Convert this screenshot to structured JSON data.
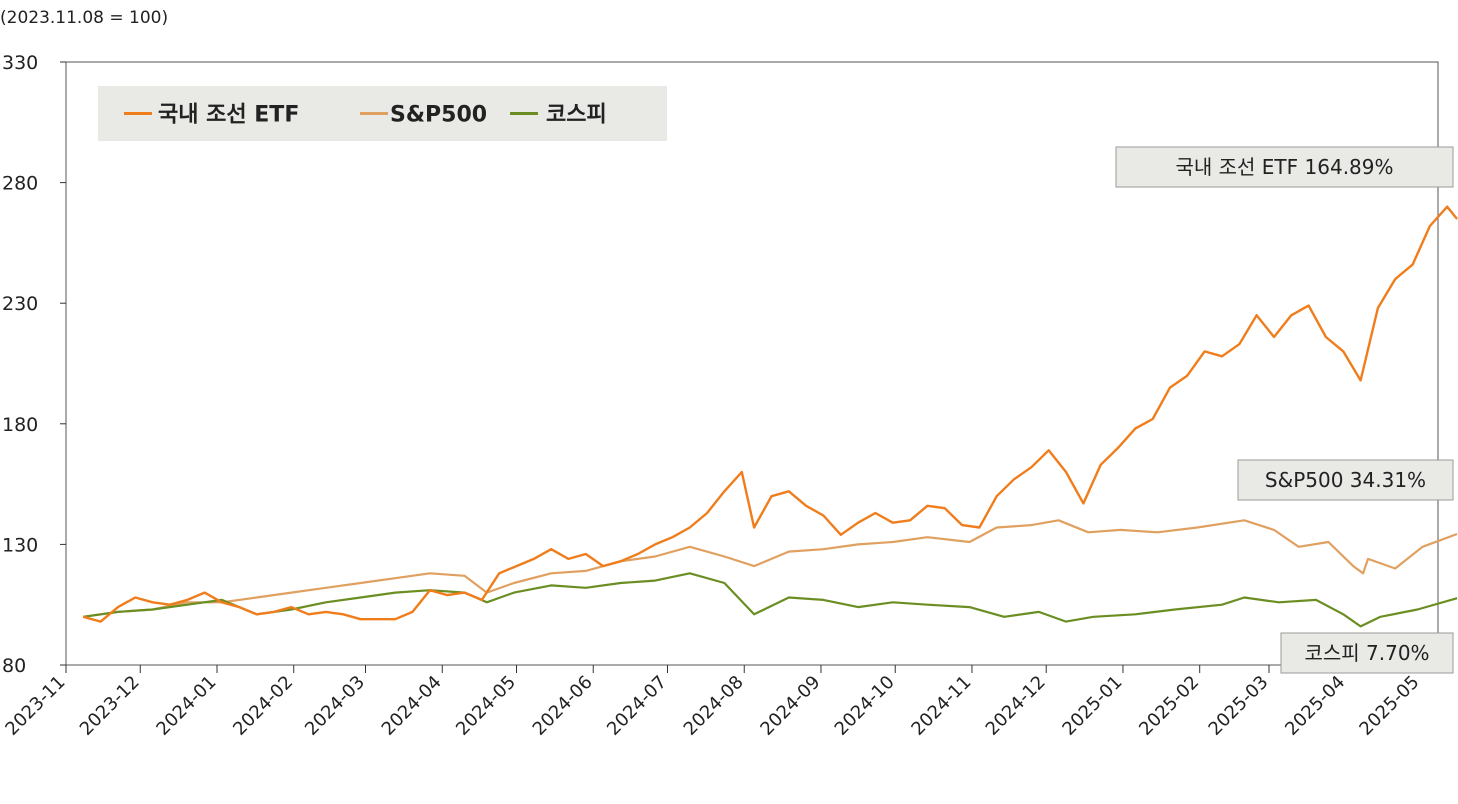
{
  "chart_data": {
    "type": "line",
    "note": "(2023.11.08 = 100)",
    "ylim": [
      80,
      330
    ],
    "yticks": [
      80,
      130,
      180,
      230,
      280,
      330
    ],
    "ytick_labels": [
      "80",
      "130",
      "180",
      "230",
      "280",
      "330"
    ],
    "xticks": [
      "2023-11",
      "2023-12",
      "2024-01",
      "2024-02",
      "2024-03",
      "2024-04",
      "2024-05",
      "2024-06",
      "2024-07",
      "2024-08",
      "2024-09",
      "2024-10",
      "2024-11",
      "2024-12",
      "2025-01",
      "2025-02",
      "2025-03",
      "2025-04",
      "2025-05"
    ],
    "legend": {
      "position": "top-left"
    },
    "series": [
      {
        "name": "국내 조선 ETF",
        "color": "#f07d1c",
        "end_label": "국내 조선 ETF 164.89%",
        "points": [
          [
            "2023-11-08",
            100
          ],
          [
            "2023-11-15",
            98
          ],
          [
            "2023-11-22",
            104
          ],
          [
            "2023-11-29",
            108
          ],
          [
            "2023-12-06",
            106
          ],
          [
            "2023-12-13",
            105
          ],
          [
            "2023-12-20",
            107
          ],
          [
            "2023-12-27",
            110
          ],
          [
            "2024-01-03",
            106
          ],
          [
            "2024-01-10",
            104
          ],
          [
            "2024-01-17",
            101
          ],
          [
            "2024-01-24",
            102
          ],
          [
            "2024-01-31",
            104
          ],
          [
            "2024-02-07",
            101
          ],
          [
            "2024-02-14",
            102
          ],
          [
            "2024-02-21",
            101
          ],
          [
            "2024-02-28",
            99
          ],
          [
            "2024-03-06",
            99
          ],
          [
            "2024-03-13",
            99
          ],
          [
            "2024-03-20",
            102
          ],
          [
            "2024-03-27",
            111
          ],
          [
            "2024-04-03",
            109
          ],
          [
            "2024-04-10",
            110
          ],
          [
            "2024-04-17",
            107
          ],
          [
            "2024-04-24",
            118
          ],
          [
            "2024-05-01",
            121
          ],
          [
            "2024-05-08",
            124
          ],
          [
            "2024-05-15",
            128
          ],
          [
            "2024-05-22",
            124
          ],
          [
            "2024-05-29",
            126
          ],
          [
            "2024-06-05",
            121
          ],
          [
            "2024-06-12",
            123
          ],
          [
            "2024-06-19",
            126
          ],
          [
            "2024-06-26",
            130
          ],
          [
            "2024-07-03",
            133
          ],
          [
            "2024-07-10",
            137
          ],
          [
            "2024-07-17",
            143
          ],
          [
            "2024-07-24",
            152
          ],
          [
            "2024-07-31",
            160
          ],
          [
            "2024-08-05",
            137
          ],
          [
            "2024-08-12",
            150
          ],
          [
            "2024-08-19",
            152
          ],
          [
            "2024-08-26",
            146
          ],
          [
            "2024-09-02",
            142
          ],
          [
            "2024-09-09",
            134
          ],
          [
            "2024-09-16",
            139
          ],
          [
            "2024-09-23",
            143
          ],
          [
            "2024-09-30",
            139
          ],
          [
            "2024-10-07",
            140
          ],
          [
            "2024-10-14",
            146
          ],
          [
            "2024-10-21",
            145
          ],
          [
            "2024-10-28",
            138
          ],
          [
            "2024-11-04",
            137
          ],
          [
            "2024-11-11",
            150
          ],
          [
            "2024-11-18",
            157
          ],
          [
            "2024-11-25",
            162
          ],
          [
            "2024-12-02",
            169
          ],
          [
            "2024-12-09",
            160
          ],
          [
            "2024-12-16",
            147
          ],
          [
            "2024-12-23",
            163
          ],
          [
            "2024-12-30",
            170
          ],
          [
            "2025-01-06",
            178
          ],
          [
            "2025-01-13",
            182
          ],
          [
            "2025-01-20",
            195
          ],
          [
            "2025-01-27",
            200
          ],
          [
            "2025-02-03",
            210
          ],
          [
            "2025-02-10",
            208
          ],
          [
            "2025-02-17",
            213
          ],
          [
            "2025-02-24",
            225
          ],
          [
            "2025-03-03",
            216
          ],
          [
            "2025-03-10",
            225
          ],
          [
            "2025-03-17",
            229
          ],
          [
            "2025-03-24",
            216
          ],
          [
            "2025-03-31",
            210
          ],
          [
            "2025-04-07",
            198
          ],
          [
            "2025-04-14",
            228
          ],
          [
            "2025-04-21",
            240
          ],
          [
            "2025-04-28",
            246
          ],
          [
            "2025-05-05",
            262
          ],
          [
            "2025-05-12",
            270
          ],
          [
            "2025-05-16",
            264.89
          ]
        ]
      },
      {
        "name": "S&P500",
        "color": "#e0a060",
        "end_label": "S&P500 34.31%",
        "points": [
          [
            "2023-11-08",
            100
          ],
          [
            "2023-11-22",
            102
          ],
          [
            "2023-12-06",
            103
          ],
          [
            "2023-12-20",
            106
          ],
          [
            "2024-01-03",
            106
          ],
          [
            "2024-01-17",
            108
          ],
          [
            "2024-01-31",
            110
          ],
          [
            "2024-02-14",
            112
          ],
          [
            "2024-02-28",
            114
          ],
          [
            "2024-03-13",
            116
          ],
          [
            "2024-03-27",
            118
          ],
          [
            "2024-04-10",
            117
          ],
          [
            "2024-04-19",
            110
          ],
          [
            "2024-04-30",
            114
          ],
          [
            "2024-05-15",
            118
          ],
          [
            "2024-05-29",
            119
          ],
          [
            "2024-06-12",
            123
          ],
          [
            "2024-06-26",
            125
          ],
          [
            "2024-07-10",
            129
          ],
          [
            "2024-07-24",
            125
          ],
          [
            "2024-08-05",
            121
          ],
          [
            "2024-08-19",
            127
          ],
          [
            "2024-09-02",
            128
          ],
          [
            "2024-09-16",
            130
          ],
          [
            "2024-09-30",
            131
          ],
          [
            "2024-10-14",
            133
          ],
          [
            "2024-10-31",
            131
          ],
          [
            "2024-11-11",
            137
          ],
          [
            "2024-11-25",
            138
          ],
          [
            "2024-12-06",
            140
          ],
          [
            "2024-12-18",
            135
          ],
          [
            "2024-12-31",
            136
          ],
          [
            "2025-01-15",
            135
          ],
          [
            "2025-01-31",
            137
          ],
          [
            "2025-02-19",
            140
          ],
          [
            "2025-03-03",
            136
          ],
          [
            "2025-03-13",
            129
          ],
          [
            "2025-03-25",
            131
          ],
          [
            "2025-04-04",
            121
          ],
          [
            "2025-04-08",
            118
          ],
          [
            "2025-04-10",
            124
          ],
          [
            "2025-04-21",
            120
          ],
          [
            "2025-05-02",
            129
          ],
          [
            "2025-05-16",
            134.31
          ]
        ]
      },
      {
        "name": "코스피",
        "color": "#6b8e23",
        "end_label": "코스피 7.70%",
        "points": [
          [
            "2023-11-08",
            100
          ],
          [
            "2023-11-22",
            102
          ],
          [
            "2023-12-06",
            103
          ],
          [
            "2023-12-20",
            105
          ],
          [
            "2024-01-03",
            107
          ],
          [
            "2024-01-17",
            101
          ],
          [
            "2024-01-31",
            103
          ],
          [
            "2024-02-14",
            106
          ],
          [
            "2024-02-28",
            108
          ],
          [
            "2024-03-13",
            110
          ],
          [
            "2024-03-27",
            111
          ],
          [
            "2024-04-10",
            110
          ],
          [
            "2024-04-19",
            106
          ],
          [
            "2024-04-30",
            110
          ],
          [
            "2024-05-15",
            113
          ],
          [
            "2024-05-29",
            112
          ],
          [
            "2024-06-12",
            114
          ],
          [
            "2024-06-26",
            115
          ],
          [
            "2024-07-10",
            118
          ],
          [
            "2024-07-24",
            114
          ],
          [
            "2024-08-05",
            101
          ],
          [
            "2024-08-19",
            108
          ],
          [
            "2024-09-02",
            107
          ],
          [
            "2024-09-16",
            104
          ],
          [
            "2024-09-30",
            106
          ],
          [
            "2024-10-14",
            105
          ],
          [
            "2024-10-31",
            104
          ],
          [
            "2024-11-14",
            100
          ],
          [
            "2024-11-28",
            102
          ],
          [
            "2024-12-09",
            98
          ],
          [
            "2024-12-20",
            100
          ],
          [
            "2025-01-06",
            101
          ],
          [
            "2025-01-22",
            103
          ],
          [
            "2025-02-10",
            105
          ],
          [
            "2025-02-19",
            108
          ],
          [
            "2025-03-05",
            106
          ],
          [
            "2025-03-20",
            107
          ],
          [
            "2025-03-31",
            101
          ],
          [
            "2025-04-07",
            96
          ],
          [
            "2025-04-15",
            100
          ],
          [
            "2025-04-30",
            103
          ],
          [
            "2025-05-16",
            107.7
          ]
        ]
      }
    ]
  }
}
